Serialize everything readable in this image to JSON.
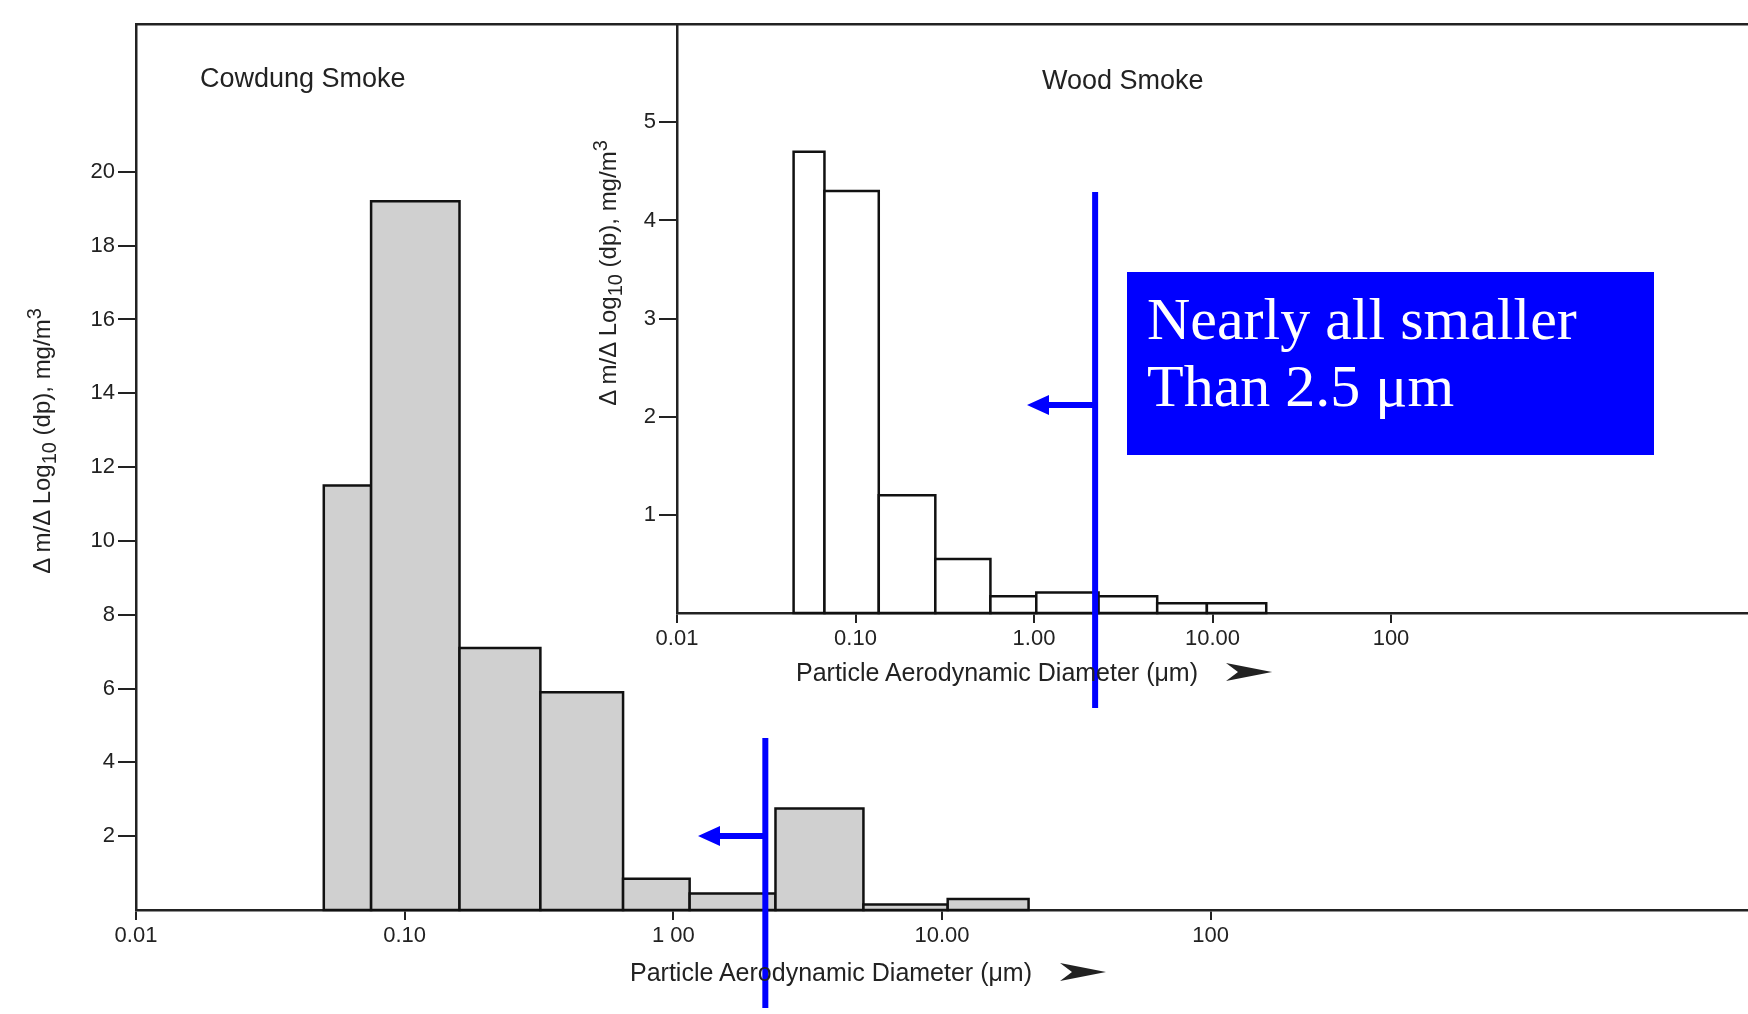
{
  "chart_data": [
    {
      "type": "histogram",
      "title": "Cowdung Smoke",
      "xlabel": "Particle Aerodynamic Diameter (μm)",
      "ylabel": "Δ m/Δ Log$_{10}$ (dp), mg/m$^{3}$",
      "log": "x",
      "bins": [
        0.05,
        0.075,
        0.16,
        0.32,
        0.65,
        1.15,
        2.4,
        5.1,
        10.5,
        21
      ],
      "values": [
        11.5,
        19.2,
        7.1,
        5.9,
        0.85,
        0.45,
        2.75,
        0.15,
        0.3
      ],
      "color": "#d0d0d0",
      "xlim": [
        0.01,
        10000
      ],
      "xticks": [
        {
          "value": 0.01,
          "label": "0.01"
        },
        {
          "value": 0.1,
          "label": "0.10"
        },
        {
          "value": 1,
          "label": "1 00"
        },
        {
          "value": 10,
          "label": "10.00"
        },
        100
      ],
      "ylim": [
        0,
        24
      ],
      "yticks": [
        2,
        4,
        6,
        8,
        10,
        12,
        14,
        16,
        18,
        20
      ],
      "ref_lines": [
        {
          "axis": "x",
          "value": 2.2,
          "color": "#0000ff"
        }
      ]
    },
    {
      "type": "histogram",
      "title": "Wood Smoke",
      "xlabel": "Particle Aerodynamic Diameter (μm)",
      "ylabel": "Δ m/Δ Log$_{10}$ (dp), mg/m$^{3}$",
      "log": "x",
      "bins": [
        0.045,
        0.067,
        0.135,
        0.28,
        0.57,
        1.03,
        2.3,
        4.9,
        9.3,
        20
      ],
      "values": [
        4.7,
        4.3,
        1.2,
        0.55,
        0.17,
        0.21,
        0.17,
        0.1,
        0.1
      ],
      "color": "#ffffff",
      "xlim": [
        0.01,
        10000
      ],
      "xticks": [
        {
          "value": 0.01,
          "label": "0.01"
        },
        {
          "value": 0.1,
          "label": "0.10"
        },
        {
          "value": 1,
          "label": "1.00"
        },
        {
          "value": 10,
          "label": "10.00"
        },
        100
      ],
      "ylim": [
        0,
        6
      ],
      "yticks": [
        1,
        2,
        3,
        4,
        5
      ],
      "ref_lines": [
        {
          "axis": "x",
          "value": 2.2,
          "color": "#0000ff"
        }
      ],
      "annotations": [
        "Nearly all smaller Than 2.5 μm"
      ]
    }
  ]
}
